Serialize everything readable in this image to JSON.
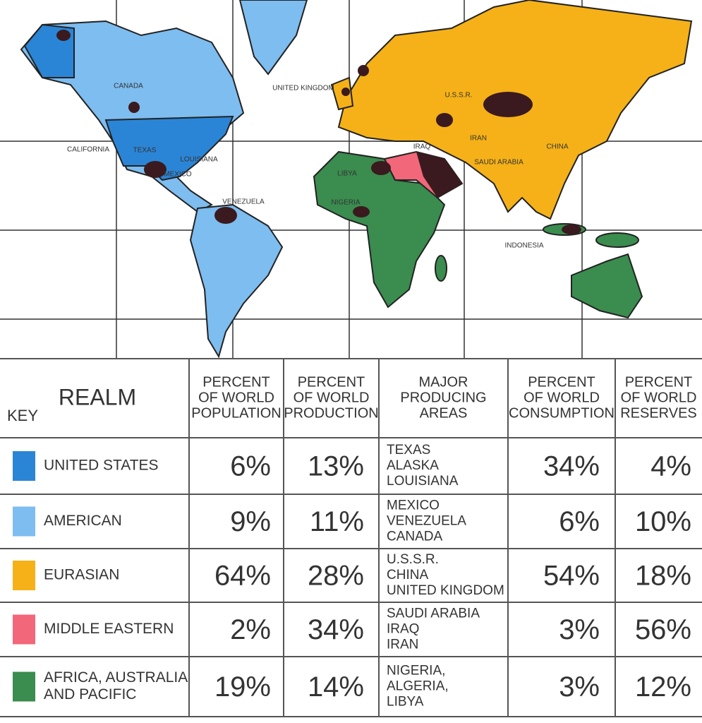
{
  "map": {
    "labels": [
      "CANADA",
      "UNITED KINGDOM",
      "U.S.S.R.",
      "CALIFORNIA",
      "TEXAS",
      "LOUISIANA",
      "MEXICO",
      "IRAQ",
      "IRAN",
      "CHINA",
      "SAUDI ARABIA",
      "LIBYA",
      "VENEZUELA",
      "NIGERIA",
      "INDONESIA"
    ]
  },
  "table": {
    "key_label": "KEY",
    "realm_header": "REALM",
    "columns": [
      [
        "PERCENT",
        "OF WORLD",
        "POPULATION"
      ],
      [
        "PERCENT",
        "OF WORLD",
        "PRODUCTION"
      ],
      [
        "MAJOR",
        "PRODUCING",
        "AREAS"
      ],
      [
        "PERCENT",
        "OF WORLD",
        "CONSUMPTION"
      ],
      [
        "PERCENT",
        "OF WORLD",
        "RESERVES"
      ]
    ],
    "rows": [
      {
        "realm": [
          "UNITED STATES"
        ],
        "color": "#2b85d6",
        "population": "6%",
        "production": "13%",
        "areas": [
          "TEXAS",
          "ALASKA",
          "LOUISIANA"
        ],
        "consumption": "34%",
        "reserves": "4%"
      },
      {
        "realm": [
          "AMERICAN"
        ],
        "color": "#7dbdf0",
        "population": "9%",
        "production": "11%",
        "areas": [
          "MEXICO",
          "VENEZUELA",
          "CANADA"
        ],
        "consumption": "6%",
        "reserves": "10%"
      },
      {
        "realm": [
          "EURASIAN"
        ],
        "color": "#f5b117",
        "population": "64%",
        "production": "28%",
        "areas": [
          "U.S.S.R.",
          "CHINA",
          "UNITED KINGDOM"
        ],
        "consumption": "54%",
        "reserves": "18%"
      },
      {
        "realm": [
          "MIDDLE EASTERN"
        ],
        "color": "#f2677a",
        "population": "2%",
        "production": "34%",
        "areas": [
          "SAUDI ARABIA",
          "IRAQ",
          "IRAN"
        ],
        "consumption": "3%",
        "reserves": "56%"
      },
      {
        "realm": [
          "AFRICA, AUSTRALIA",
          "AND PACIFIC"
        ],
        "color": "#3a8c4f",
        "population": "19%",
        "production": "14%",
        "areas": [
          "NIGERIA,",
          "ALGERIA,",
          "LIBYA"
        ],
        "consumption": "3%",
        "reserves": "12%"
      }
    ]
  }
}
